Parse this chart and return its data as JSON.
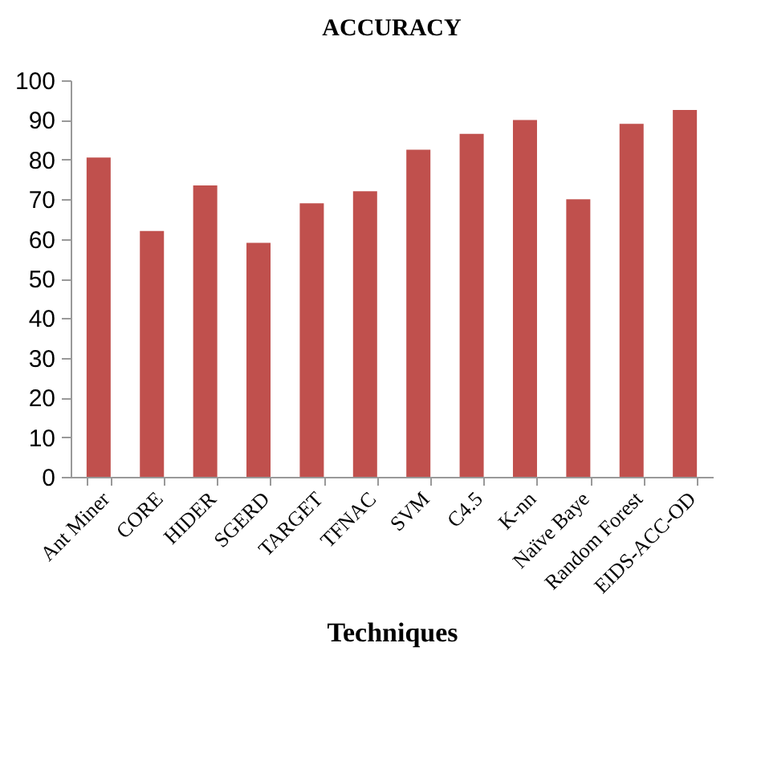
{
  "chart_data": {
    "type": "bar",
    "title": "ACCURACY",
    "xlabel": "Techniques",
    "categories": [
      "Ant Miner",
      "CORE",
      "HIDER",
      "SGERD",
      "TARGET",
      "TFNAC",
      "SVM",
      "C4.5",
      "K-nn",
      "Naïve Baye",
      "Random Forest",
      "EIDS-ACC-OD"
    ],
    "values": [
      80.5,
      62,
      73.5,
      59,
      69,
      72,
      82.5,
      86.5,
      90,
      70,
      89,
      92.5
    ],
    "color": "#c0504d",
    "ylim": [
      0,
      100
    ],
    "yticks": [
      0,
      10,
      20,
      30,
      40,
      50,
      60,
      70,
      80,
      90,
      100
    ],
    "grid": false
  }
}
